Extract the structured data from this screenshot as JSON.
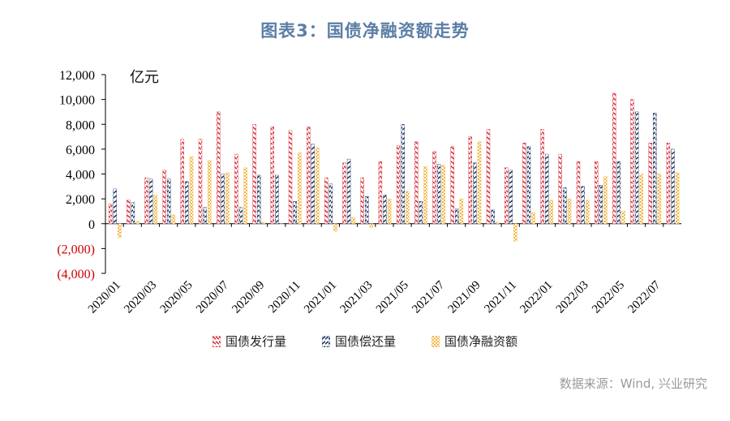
{
  "title": "图表3：国债净融资额走势",
  "source": "数据来源：Wind, 兴业研究",
  "unit": "亿元",
  "chart_data": {
    "type": "bar",
    "title": "图表3：国债净融资额走势",
    "ylabel": "亿元",
    "ylim": [
      -4000,
      12000
    ],
    "yticks": [
      12000,
      10000,
      8000,
      6000,
      4000,
      2000,
      0,
      -2000,
      -4000
    ],
    "ytick_labels": [
      "12,000",
      "10,000",
      "8,000",
      "6,000",
      "4,000",
      "2,000",
      "0",
      "(2,000)",
      "(4,000)"
    ],
    "negative_tick_color": "#cc0000",
    "xtick_labels": [
      "2020/01",
      "2020/03",
      "2020/05",
      "2020/07",
      "2020/09",
      "2020/11",
      "2021/01",
      "2021/03",
      "2021/05",
      "2021/07",
      "2021/09",
      "2021/11",
      "2022/01",
      "2022/03",
      "2022/05",
      "2022/07"
    ],
    "categories": [
      "2020/01",
      "2020/02",
      "2020/03",
      "2020/04",
      "2020/05",
      "2020/06",
      "2020/07",
      "2020/08",
      "2020/09",
      "2020/10",
      "2020/11",
      "2020/12",
      "2021/01",
      "2021/02",
      "2021/03",
      "2021/04",
      "2021/05",
      "2021/06",
      "2021/07",
      "2021/08",
      "2021/09",
      "2021/10",
      "2021/11",
      "2021/12",
      "2022/01",
      "2022/02",
      "2022/03",
      "2022/04",
      "2022/05",
      "2022/06",
      "2022/07",
      "2022/08"
    ],
    "series": [
      {
        "name": "国债发行量",
        "color": "#d6313d",
        "pattern": "red-stripe",
        "values": [
          1600,
          1900,
          3700,
          4300,
          6800,
          6800,
          9000,
          5600,
          8000,
          7800,
          7500,
          7800,
          3700,
          4900,
          3700,
          5000,
          6300,
          6600,
          5800,
          6200,
          7000,
          7600,
          4500,
          6500,
          7600,
          5600,
          5000,
          5000,
          10500,
          10000,
          6500,
          6500
        ]
      },
      {
        "name": "国债偿还量",
        "color": "#1f3864",
        "pattern": "blue-check",
        "values": [
          2800,
          1700,
          3600,
          3600,
          3400,
          1300,
          4000,
          1300,
          3900,
          3900,
          1800,
          6400,
          3200,
          5200,
          2200,
          2300,
          8000,
          1800,
          4800,
          1200,
          4900,
          1100,
          4300,
          6200,
          5600,
          2900,
          3000,
          3100,
          5000,
          9000,
          8900,
          6000
        ]
      },
      {
        "name": "国债净融资额",
        "color": "#f2b642",
        "pattern": "gold-dots",
        "values": [
          -1100,
          200,
          2300,
          700,
          5400,
          5100,
          4100,
          4500,
          100,
          0,
          5700,
          6100,
          -600,
          500,
          -300,
          2000,
          2600,
          4600,
          4700,
          2000,
          6600,
          100,
          -1400,
          900,
          1900,
          2000,
          1900,
          3800,
          1000,
          4000,
          4000,
          4100
        ]
      }
    ],
    "legend_position": "bottom"
  }
}
